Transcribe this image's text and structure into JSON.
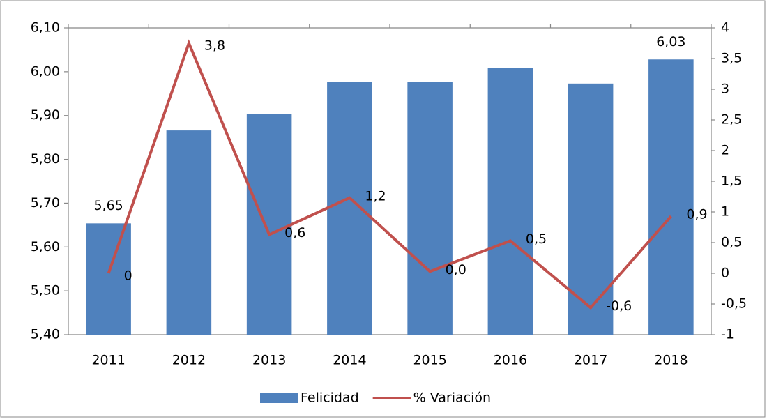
{
  "chart_data": {
    "type": "bar-line",
    "categories": [
      "2011",
      "2012",
      "2013",
      "2014",
      "2015",
      "2016",
      "2017",
      "2018"
    ],
    "series": [
      {
        "name": "Felicidad",
        "type": "bar",
        "color": "#4f81bd",
        "values": [
          5.654,
          5.866,
          5.903,
          5.976,
          5.977,
          6.008,
          5.973,
          6.028
        ],
        "value_labels": [
          "5,65",
          null,
          null,
          null,
          null,
          null,
          null,
          "6,03"
        ]
      },
      {
        "name": "% Variación",
        "type": "line",
        "axis": "y2",
        "color": "#c0504d",
        "values": [
          0,
          3.75,
          0.63,
          1.23,
          0.03,
          0.53,
          -0.56,
          0.93
        ],
        "value_labels": [
          "0",
          "3,8",
          "0,6",
          "1,2",
          "0,0",
          "0,5",
          "-0,6",
          "0,9"
        ]
      }
    ],
    "ylim": [
      5.4,
      6.1
    ],
    "yticks": [
      {
        "value": 5.4,
        "label": "5,40"
      },
      {
        "value": 5.5,
        "label": "5,50"
      },
      {
        "value": 5.6,
        "label": "5,60"
      },
      {
        "value": 5.7,
        "label": "5,70"
      },
      {
        "value": 5.8,
        "label": "5,80"
      },
      {
        "value": 5.9,
        "label": "5,90"
      },
      {
        "value": 6.0,
        "label": "6,00"
      },
      {
        "value": 6.1,
        "label": "6,10"
      }
    ],
    "y2lim": [
      -1,
      4
    ],
    "y2ticks": [
      -1,
      {
        "value": -0.5,
        "label": "-0,5"
      },
      0,
      {
        "value": 0.5,
        "label": "0,5"
      },
      1,
      {
        "value": 1.5,
        "label": "1,5"
      },
      2,
      {
        "value": 2.5,
        "label": "2,5"
      },
      3,
      {
        "value": 3.5,
        "label": "3,5"
      },
      4
    ],
    "legend": "bottom"
  }
}
